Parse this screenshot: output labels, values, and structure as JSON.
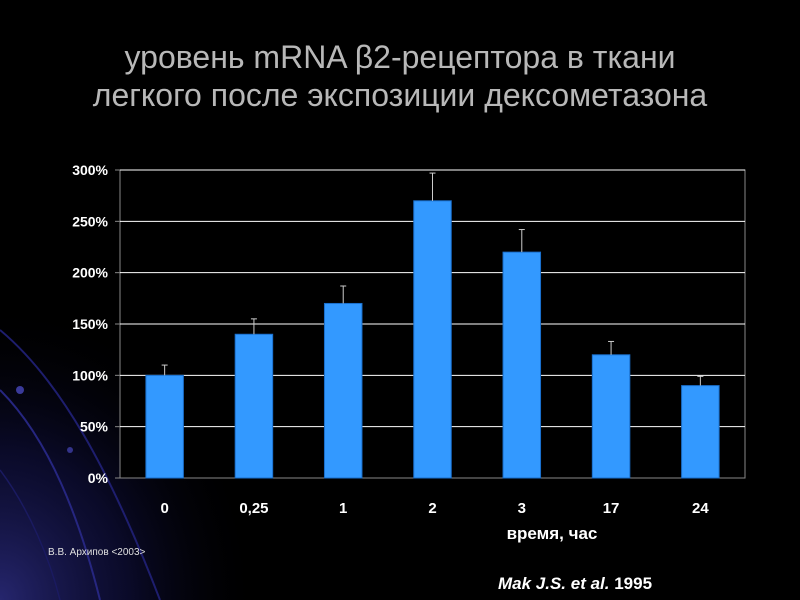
{
  "title": {
    "line1": "уровень mRNA β2-рецептора в ткани",
    "line2": "легкого после экспозиции дексометазона"
  },
  "chart_data": {
    "type": "bar",
    "categories": [
      "0",
      "0,25",
      "1",
      "2",
      "3",
      "17",
      "24"
    ],
    "values": [
      100,
      140,
      170,
      270,
      220,
      120,
      90
    ],
    "error": [
      10,
      15,
      17,
      27,
      22,
      13,
      9
    ],
    "yticks": [
      "0%",
      "50%",
      "100%",
      "150%",
      "200%",
      "250%",
      "300%"
    ],
    "ylim": [
      0,
      300
    ],
    "xlabel": "время, час",
    "grid": true,
    "bar_color": "#3399ff",
    "plot_bg": "#000000",
    "grid_color": "#ffffff"
  },
  "footer": {
    "author": "В.В. Архипов <2003>",
    "ref_italic": "Mak J.S. et al.",
    "ref_year": " 1995"
  }
}
